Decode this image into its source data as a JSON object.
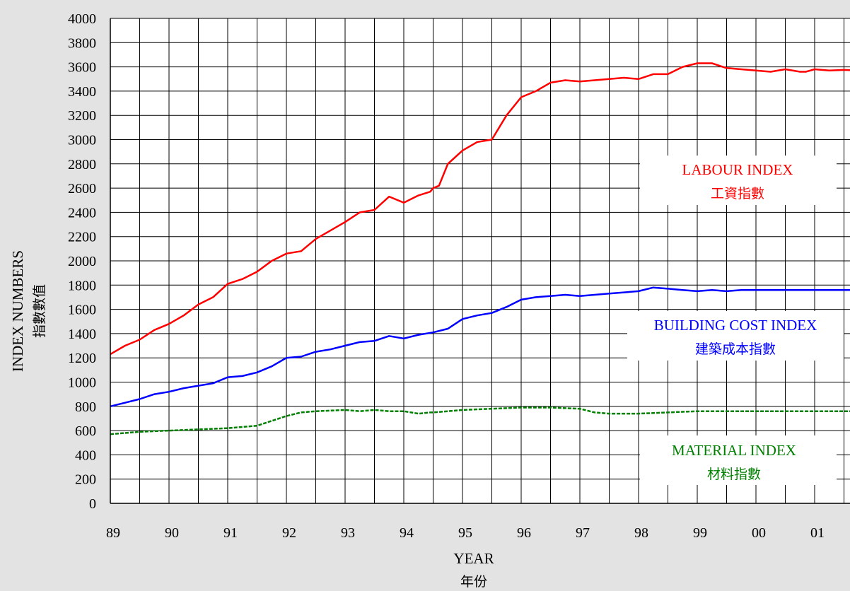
{
  "chart_data": {
    "type": "line",
    "xlabel": "YEAR",
    "xlabel_cjk": "年份",
    "ylabel": "INDEX NUMBERS",
    "ylabel_cjk": "指數數值",
    "ylim": [
      0,
      4000
    ],
    "y_ticks": [
      "0",
      "200",
      "400",
      "600",
      "800",
      "1000",
      "1200",
      "1400",
      "1600",
      "1800",
      "2000",
      "2200",
      "2400",
      "2600",
      "2800",
      "3000",
      "3200",
      "3400",
      "3600",
      "3800",
      "4000"
    ],
    "x_ticks": [
      "89",
      "90",
      "91",
      "92",
      "93",
      "94",
      "95",
      "96",
      "97",
      "98",
      "99",
      "00",
      "01"
    ],
    "grid": true,
    "series": [
      {
        "name": "LABOUR INDEX",
        "name_cjk": "工資指數",
        "color": "#ff0000",
        "style": "solid",
        "x": [
          0,
          0.25,
          0.5,
          0.75,
          1,
          1.25,
          1.5,
          1.75,
          2,
          2.25,
          2.5,
          2.75,
          3,
          3.25,
          3.5,
          3.75,
          4,
          4.25,
          4.5,
          4.75,
          5,
          5.25,
          5.45,
          5.5,
          5.6,
          5.75,
          6,
          6.25,
          6.5,
          6.75,
          7,
          7.25,
          7.5,
          7.75,
          8,
          8.25,
          8.5,
          8.75,
          9,
          9.25,
          9.5,
          9.75,
          10,
          10.25,
          10.5,
          10.75,
          11,
          11.25,
          11.5,
          11.75,
          11.85,
          12,
          12.25,
          12.5,
          12.75,
          13
        ],
        "values": [
          1230,
          1300,
          1350,
          1430,
          1480,
          1550,
          1640,
          1700,
          1810,
          1850,
          1910,
          2000,
          2060,
          2080,
          2180,
          2250,
          2320,
          2400,
          2420,
          2530,
          2480,
          2540,
          2570,
          2600,
          2620,
          2800,
          2910,
          2980,
          3000,
          3200,
          3350,
          3400,
          3470,
          3490,
          3480,
          3490,
          3500,
          3510,
          3500,
          3540,
          3540,
          3600,
          3630,
          3630,
          3590,
          3580,
          3570,
          3560,
          3580,
          3560,
          3560,
          3580,
          3570,
          3575,
          3570,
          3570
        ]
      },
      {
        "name": "BUILDING COST INDEX",
        "name_cjk": "建築成本指數",
        "color": "#0000ff",
        "style": "solid",
        "x": [
          0,
          0.25,
          0.5,
          0.75,
          1,
          1.25,
          1.5,
          1.75,
          2,
          2.25,
          2.5,
          2.75,
          3,
          3.25,
          3.5,
          3.75,
          4,
          4.25,
          4.5,
          4.75,
          5,
          5.25,
          5.5,
          5.75,
          6,
          6.25,
          6.5,
          6.75,
          7,
          7.25,
          7.5,
          7.75,
          8,
          8.25,
          8.5,
          8.75,
          9,
          9.25,
          9.5,
          9.75,
          10,
          10.25,
          10.5,
          10.75,
          11,
          11.25,
          11.5,
          11.75,
          12,
          12.25,
          12.5,
          12.75,
          13
        ],
        "values": [
          800,
          830,
          860,
          900,
          920,
          950,
          970,
          990,
          1040,
          1050,
          1080,
          1130,
          1200,
          1210,
          1250,
          1270,
          1300,
          1330,
          1340,
          1380,
          1360,
          1390,
          1410,
          1440,
          1520,
          1550,
          1570,
          1620,
          1680,
          1700,
          1710,
          1720,
          1710,
          1720,
          1730,
          1740,
          1750,
          1780,
          1770,
          1760,
          1750,
          1760,
          1750,
          1760,
          1760,
          1760,
          1760,
          1760,
          1760,
          1760,
          1760,
          1760,
          1760
        ]
      },
      {
        "name": "MATERIAL INDEX",
        "name_cjk": "材料指數",
        "color": "#008000",
        "style": "dashed",
        "x": [
          0,
          0.5,
          1,
          1.5,
          2,
          2.5,
          3,
          3.25,
          3.5,
          4,
          4.25,
          4.5,
          4.75,
          5,
          5.25,
          5.45,
          5.5,
          5.75,
          6,
          6.5,
          7,
          7.5,
          8,
          8.25,
          8.5,
          9,
          9.5,
          10,
          10.5,
          11,
          11.5,
          12,
          12.5,
          13
        ],
        "values": [
          570,
          590,
          600,
          610,
          620,
          640,
          720,
          750,
          760,
          770,
          760,
          770,
          760,
          760,
          740,
          750,
          750,
          760,
          770,
          780,
          790,
          790,
          780,
          750,
          740,
          740,
          750,
          760,
          760,
          760,
          760,
          760,
          760,
          760
        ]
      }
    ]
  }
}
